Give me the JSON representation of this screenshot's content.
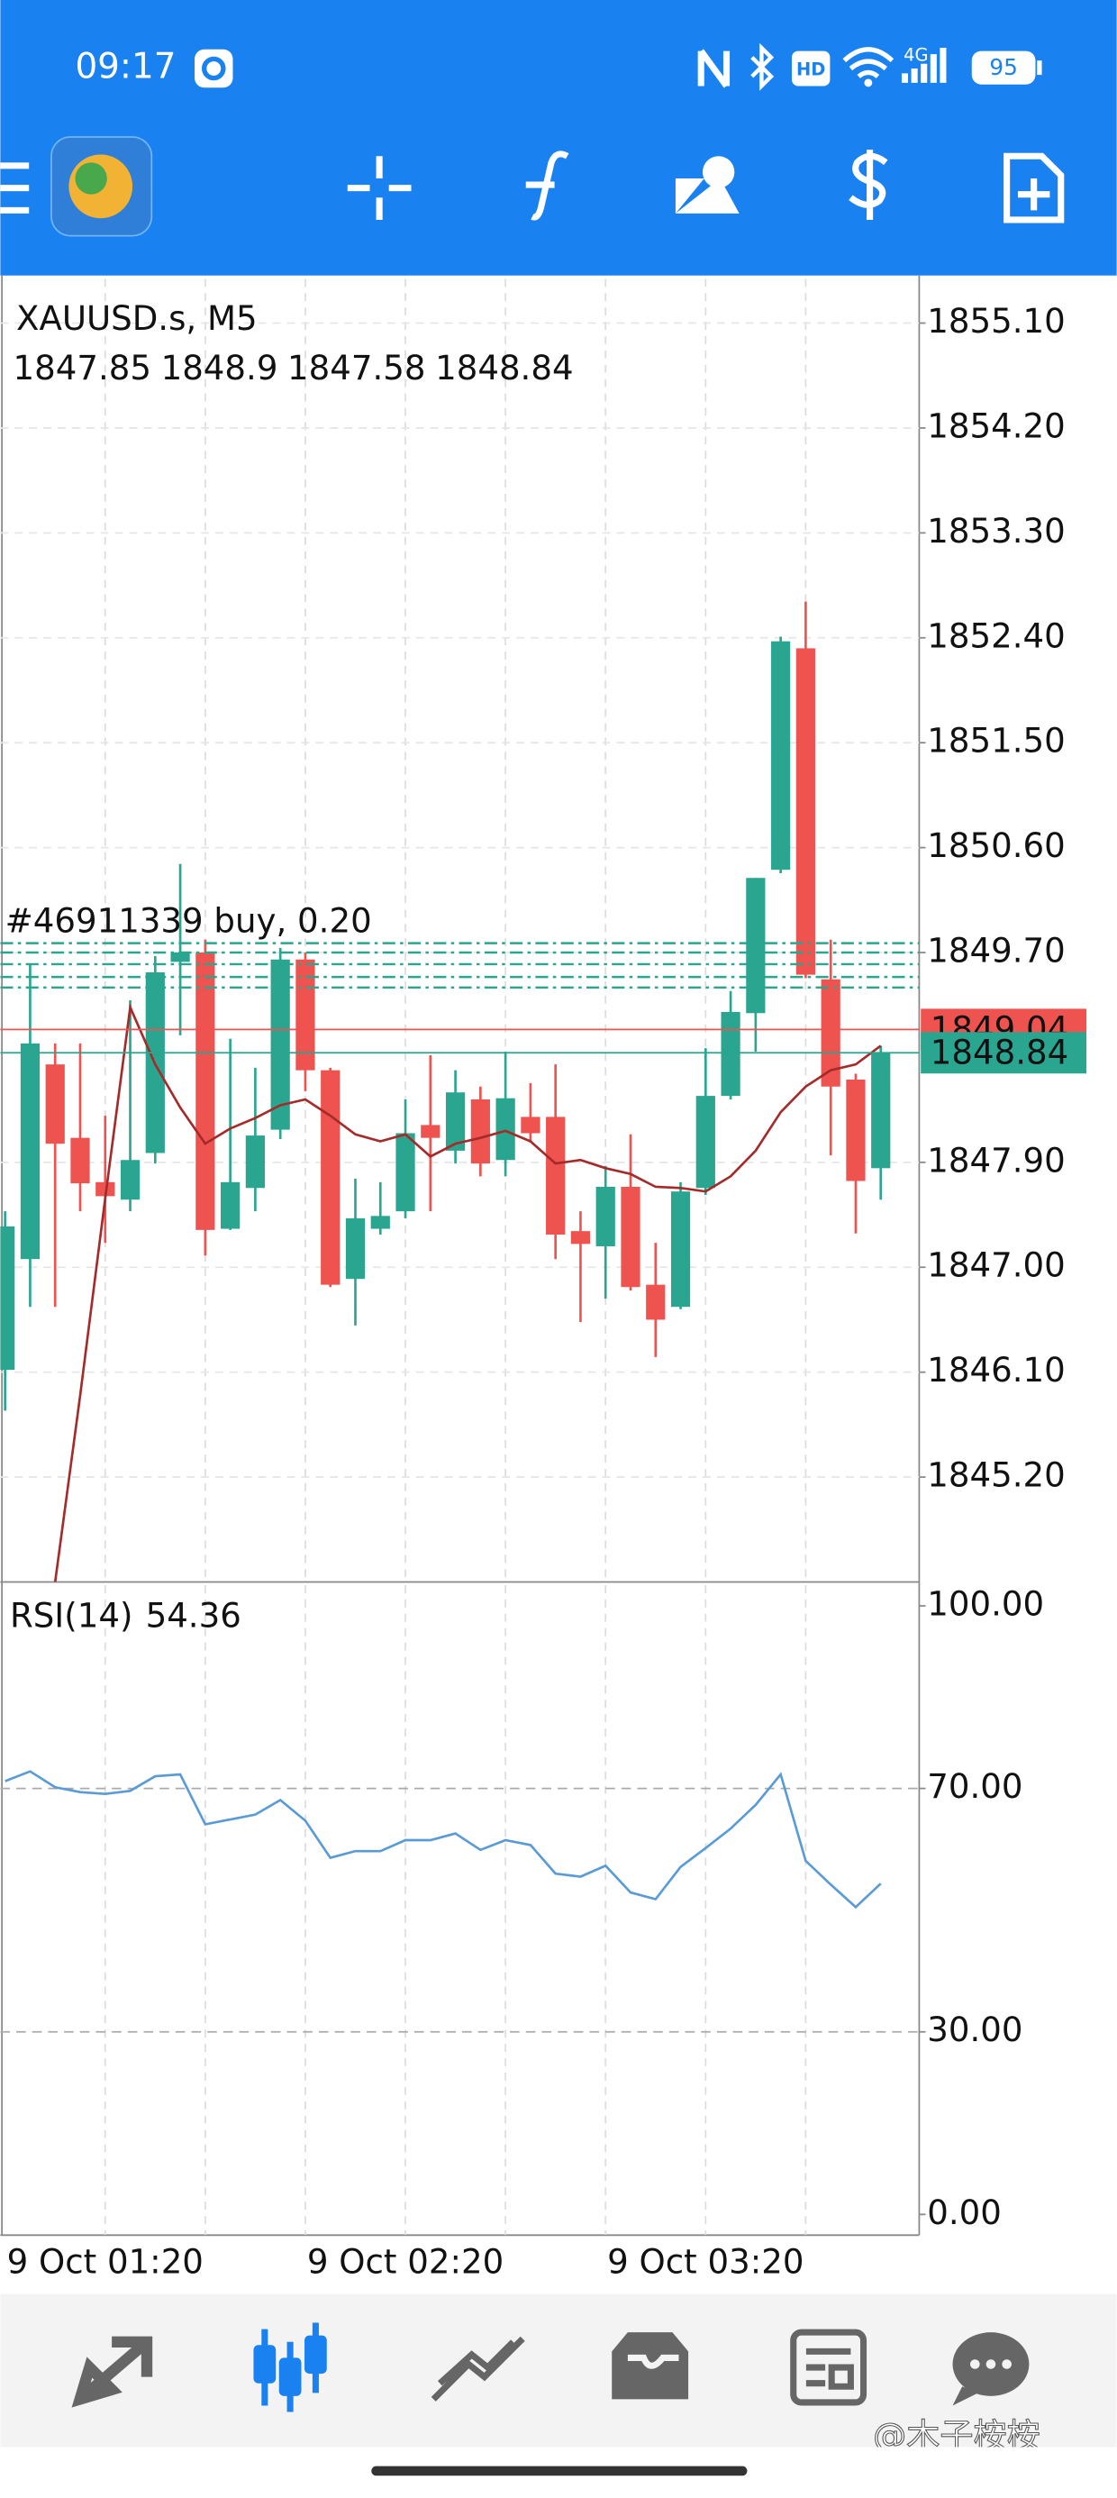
{
  "status_bar": {
    "time": "09:17",
    "hd": "HD",
    "network": "4G",
    "battery": "95"
  },
  "chart_data": [
    {
      "type": "candlestick",
      "title": "XAUUSD.s, M5",
      "categories": [
        null,
        null,
        null,
        null,
        "9 Oct 01:20",
        null,
        null,
        null,
        null,
        null,
        null,
        null,
        null,
        null,
        null,
        null,
        "9 Oct 02:20",
        null,
        null,
        null,
        null,
        null,
        null,
        null,
        null,
        null,
        null,
        null,
        "9 Oct 03:20",
        null,
        null,
        null,
        null,
        null,
        null,
        null
      ],
      "open": [
        1846.12,
        1847.07,
        1848.74,
        1848.11,
        1847.73,
        1847.58,
        1847.98,
        1849.62,
        1849.7,
        1847.33,
        1847.68,
        1848.18,
        1849.64,
        1848.69,
        1846.9,
        1847.33,
        1847.48,
        1848.22,
        1848.0,
        1848.44,
        1847.92,
        1848.29,
        1848.29,
        1847.31,
        1847.18,
        1847.69,
        1846.85,
        1846.66,
        1847.68,
        1848.47,
        1849.18,
        1850.41,
        1852.31,
        1849.47,
        1848.61,
        1847.85
      ],
      "high": [
        1847.48,
        1849.6,
        1848.92,
        1848.92,
        1848.3,
        1849.29,
        1849.67,
        1850.46,
        1849.81,
        1848.96,
        1848.71,
        1849.74,
        1849.7,
        1848.71,
        1847.76,
        1847.73,
        1848.44,
        1848.82,
        1848.69,
        1848.55,
        1848.85,
        1848.58,
        1848.74,
        1847.48,
        1847.87,
        1848.14,
        1847.21,
        1847.73,
        1848.88,
        1849.37,
        1850.34,
        1852.41,
        1852.71,
        1849.81,
        1848.66,
        1848.9
      ],
      "low": [
        1845.77,
        1846.66,
        1846.66,
        1847.48,
        1847.21,
        1847.48,
        1847.89,
        1848.99,
        1847.1,
        1847.32,
        1847.48,
        1848.1,
        1848.51,
        1846.83,
        1846.5,
        1847.28,
        1847.42,
        1847.48,
        1847.89,
        1847.78,
        1847.78,
        1848.07,
        1847.07,
        1846.53,
        1846.73,
        1846.8,
        1846.23,
        1846.64,
        1847.62,
        1848.44,
        1848.85,
        1850.38,
        1849.48,
        1847.96,
        1847.29,
        1847.58
      ],
      "close": [
        1847.35,
        1848.92,
        1848.06,
        1847.72,
        1847.61,
        1847.92,
        1849.53,
        1849.7,
        1847.32,
        1847.73,
        1848.13,
        1849.64,
        1848.69,
        1846.85,
        1847.42,
        1847.44,
        1848.15,
        1848.11,
        1848.5,
        1847.89,
        1848.45,
        1848.15,
        1847.28,
        1847.2,
        1847.69,
        1846.83,
        1846.55,
        1847.65,
        1848.47,
        1849.19,
        1850.34,
        1852.37,
        1849.51,
        1848.55,
        1847.74,
        1848.84
      ],
      "up_color": "#2aa58f",
      "down_color": "#ef5350",
      "overlay": {
        "color": "#a52a2a",
        "values": [
          null,
          null,
          1844.3,
          1845.9,
          1847.59,
          1849.23,
          1848.74,
          1848.37,
          1848.06,
          1848.19,
          1848.28,
          1848.39,
          1848.44,
          1848.3,
          1848.14,
          1848.08,
          1848.14,
          1847.95,
          1848.06,
          1848.11,
          1848.17,
          1848.08,
          1847.89,
          1847.92,
          1847.85,
          1847.8,
          1847.69,
          1847.68,
          1847.65,
          1847.78,
          1848.0,
          1848.33,
          1848.55,
          1848.69,
          1848.74,
          1848.9
        ]
      },
      "orders": {
        "label": "#46911339 buy, 0.20",
        "color": "#2aa58f",
        "levels": [
          1849.78,
          1849.7,
          1849.6,
          1849.49,
          1849.4
        ]
      },
      "price_lines": [
        {
          "value": 1849.04,
          "color": "#ef5350"
        },
        {
          "value": 1848.84,
          "color": "#2aa58f"
        }
      ],
      "ylim": [
        1844.3,
        1855.48
      ],
      "yticks": [
        {
          "value": 1855.1,
          "label": "1855.10"
        },
        {
          "value": 1854.2,
          "label": "1854.20"
        },
        {
          "value": 1853.3,
          "label": "1853.30"
        },
        {
          "value": 1852.4,
          "label": "1852.40"
        },
        {
          "value": 1851.5,
          "label": "1851.50"
        },
        {
          "value": 1850.6,
          "label": "1850.60"
        },
        {
          "value": 1849.7,
          "label": "1849.70"
        },
        {
          "value": 1847.9,
          "label": "1847.90"
        },
        {
          "value": 1847.0,
          "label": "1847.00"
        },
        {
          "value": 1846.1,
          "label": "1846.10"
        },
        {
          "value": 1845.2,
          "label": "1845.20"
        }
      ],
      "grid": true
    },
    {
      "type": "line",
      "title": "RSI(14)",
      "series": [
        {
          "color": "#5b9bd5",
          "values": [
            71.2,
            72.8,
            70.2,
            69.4,
            69.1,
            69.6,
            72.0,
            72.3,
            64.1,
            64.9,
            65.7,
            68.1,
            64.7,
            58.6,
            59.7,
            59.7,
            61.5,
            61.5,
            62.6,
            59.9,
            61.5,
            60.7,
            56.0,
            55.5,
            57.3,
            52.9,
            51.8,
            57.1,
            60.2,
            63.4,
            67.3,
            72.3,
            58.1,
            54.2,
            50.5,
            54.36
          ]
        }
      ],
      "ylim": [
        0,
        100
      ],
      "yticks": [
        {
          "value": 100,
          "label": "100.00"
        },
        {
          "value": 70,
          "label": "70.00"
        },
        {
          "value": 30,
          "label": "30.00"
        },
        {
          "value": 0,
          "label": "0.00"
        }
      ],
      "levels": [
        70,
        30
      ]
    }
  ],
  "watermark": "@木子桉桉"
}
